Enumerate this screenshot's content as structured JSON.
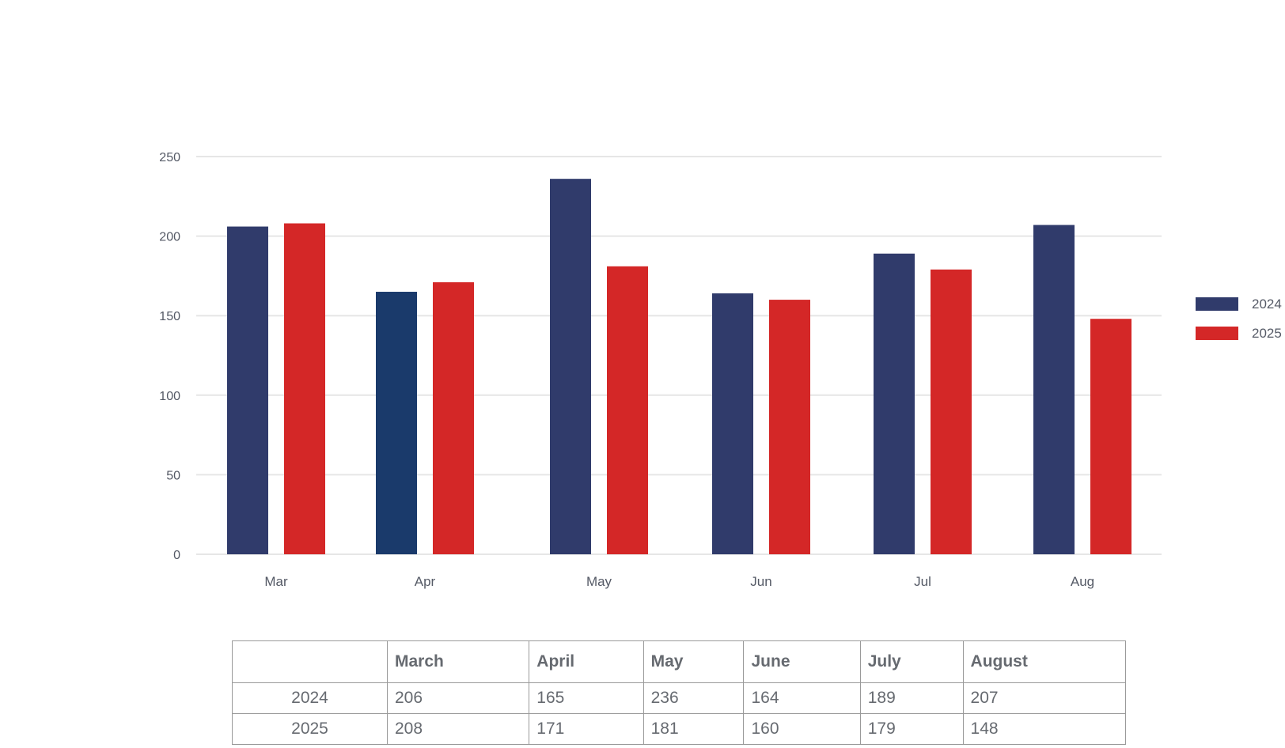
{
  "colors": {
    "series_2024": "#303b6b",
    "series_2024_apr": "#1a3a6b",
    "series_2025": "#d42727",
    "grid": "#e6e6e6",
    "text": "#555a66"
  },
  "chart_data": {
    "type": "bar",
    "categories": [
      "Mar",
      "Apr",
      "May",
      "Jun",
      "Jul",
      "Aug"
    ],
    "series": [
      {
        "name": "2024",
        "values": [
          206,
          165,
          236,
          164,
          189,
          207
        ]
      },
      {
        "name": "2025",
        "values": [
          208,
          171,
          181,
          160,
          179,
          148
        ]
      }
    ],
    "yticks": [
      "0",
      "50",
      "100",
      "150",
      "200",
      "250"
    ],
    "ylim": [
      0,
      250
    ],
    "grid": true,
    "legend": "right"
  },
  "table": {
    "headers": [
      "",
      "March",
      "April",
      "May",
      "June",
      "July",
      "August"
    ],
    "rows": [
      [
        "2024",
        "206",
        "165",
        "236",
        "164",
        "189",
        "207"
      ],
      [
        "2025",
        "208",
        "171",
        "181",
        "160",
        "179",
        "148"
      ]
    ]
  }
}
